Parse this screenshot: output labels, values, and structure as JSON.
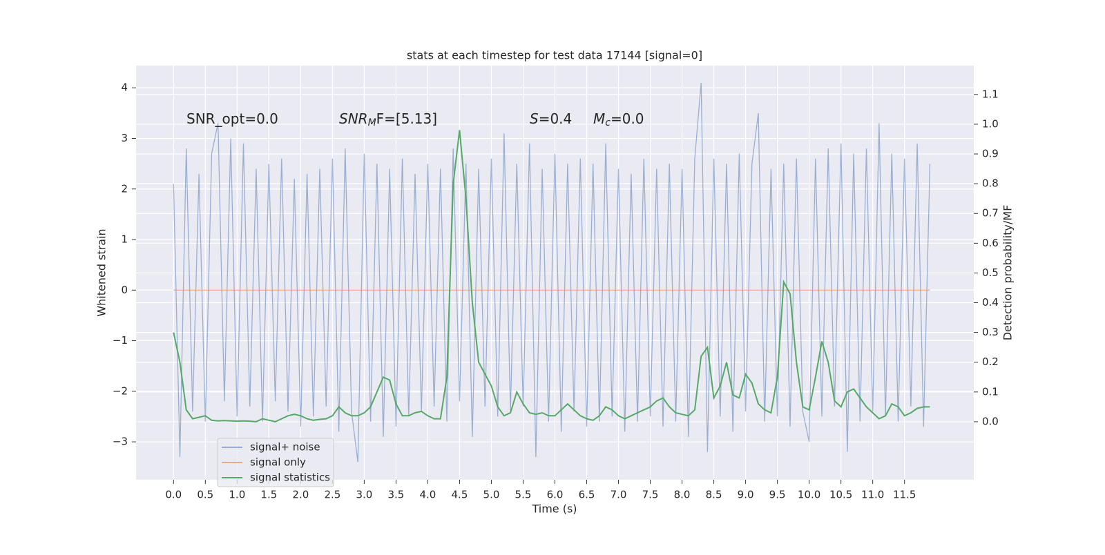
{
  "chart_data": {
    "type": "line",
    "title": "stats at each timestep for test data 17144 [signal=0]",
    "x_label": "Time (s)",
    "y_label": "Whitened strain",
    "y2_label": "Detection probability/MF",
    "annotations": [
      {
        "text": "SNR_opt=0.0"
      },
      {
        "text": "SNR",
        "sub": "M",
        "tail": "F=[5.13]",
        "italic": true
      },
      {
        "text": "S",
        "tail": "=0.4",
        "italic": true
      },
      {
        "text": "M",
        "sub": "c",
        "tail": "=0.0",
        "italic": true
      }
    ],
    "x": [
      0.0,
      0.1,
      0.2,
      0.3,
      0.4,
      0.5,
      0.6,
      0.7,
      0.8,
      0.9,
      1.0,
      1.1,
      1.2,
      1.3,
      1.4,
      1.5,
      1.6,
      1.7,
      1.8,
      1.9,
      2.0,
      2.1,
      2.2,
      2.3,
      2.4,
      2.5,
      2.6,
      2.7,
      2.8,
      2.9,
      3.0,
      3.1,
      3.2,
      3.3,
      3.4,
      3.5,
      3.6,
      3.7,
      3.8,
      3.9,
      4.0,
      4.1,
      4.2,
      4.3,
      4.4,
      4.5,
      4.6,
      4.7,
      4.8,
      4.9,
      5.0,
      5.1,
      5.2,
      5.3,
      5.4,
      5.5,
      5.6,
      5.7,
      5.8,
      5.9,
      6.0,
      6.1,
      6.2,
      6.3,
      6.4,
      6.5,
      6.6,
      6.7,
      6.8,
      6.9,
      7.0,
      7.1,
      7.2,
      7.3,
      7.4,
      7.5,
      7.6,
      7.7,
      7.8,
      7.9,
      8.0,
      8.1,
      8.2,
      8.3,
      8.4,
      8.5,
      8.6,
      8.7,
      8.8,
      8.9,
      9.0,
      9.1,
      9.2,
      9.3,
      9.4,
      9.5,
      9.6,
      9.7,
      9.8,
      9.9,
      10.0,
      10.1,
      10.2,
      10.3,
      10.4,
      10.5,
      10.6,
      10.7,
      10.8,
      10.9,
      11.0,
      11.1,
      11.2,
      11.3,
      11.4,
      11.5,
      11.6,
      11.7,
      11.8,
      11.9
    ],
    "series": [
      {
        "name": "signal+ noise",
        "color": "#4c72b0",
        "axis": "y",
        "values": [
          2.1,
          -3.3,
          2.8,
          -2.4,
          2.3,
          -2.6,
          2.7,
          3.3,
          -2.2,
          3.0,
          -2.5,
          2.9,
          -2.3,
          2.4,
          -2.6,
          2.5,
          -2.2,
          2.6,
          -2.4,
          2.2,
          -2.7,
          2.3,
          -2.5,
          2.4,
          -2.3,
          2.6,
          -2.8,
          2.8,
          -2.4,
          -3.4,
          2.7,
          -2.6,
          2.5,
          -2.9,
          2.4,
          -2.7,
          2.6,
          -2.5,
          2.3,
          -2.4,
          2.5,
          -2.3,
          2.4,
          -2.6,
          2.8,
          -2.2,
          2.5,
          -2.9,
          2.4,
          -2.3,
          2.6,
          -2.5,
          3.1,
          -2.4,
          2.5,
          -2.3,
          2.9,
          -3.3,
          2.4,
          -2.6,
          2.7,
          -2.8,
          2.5,
          -2.4,
          2.6,
          -2.7,
          2.5,
          -2.6,
          2.9,
          -2.5,
          2.4,
          -2.8,
          2.3,
          -2.6,
          2.6,
          -2.5,
          2.4,
          -2.7,
          2.5,
          -2.6,
          2.4,
          -2.9,
          2.6,
          4.1,
          -3.2,
          2.6,
          -2.5,
          2.5,
          -2.8,
          2.7,
          -2.4,
          2.5,
          3.5,
          -2.6,
          2.4,
          -2.5,
          2.5,
          -2.7,
          2.6,
          -2.4,
          -3.0,
          2.6,
          -2.5,
          2.8,
          -2.3,
          2.9,
          -3.2,
          2.7,
          -2.6,
          2.8,
          -2.4,
          3.3,
          -2.5,
          2.7,
          -2.6,
          2.6,
          -2.3,
          2.9,
          -2.7,
          2.5
        ]
      },
      {
        "name": "signal only",
        "color": "#dd8452",
        "axis": "y",
        "values": [
          0,
          0,
          0,
          0,
          0,
          0,
          0,
          0,
          0,
          0,
          0,
          0,
          0,
          0,
          0,
          0,
          0,
          0,
          0,
          0,
          0,
          0,
          0,
          0,
          0,
          0,
          0,
          0,
          0,
          0,
          0,
          0,
          0,
          0,
          0,
          0,
          0,
          0,
          0,
          0,
          0,
          0,
          0,
          0,
          0,
          0,
          0,
          0,
          0,
          0,
          0,
          0,
          0,
          0,
          0,
          0,
          0,
          0,
          0,
          0,
          0,
          0,
          0,
          0,
          0,
          0,
          0,
          0,
          0,
          0,
          0,
          0,
          0,
          0,
          0,
          0,
          0,
          0,
          0,
          0,
          0,
          0,
          0,
          0,
          0,
          0,
          0,
          0,
          0,
          0,
          0,
          0,
          0,
          0,
          0,
          0,
          0,
          0,
          0,
          0,
          0,
          0,
          0,
          0,
          0,
          0,
          0,
          0,
          0,
          0,
          0,
          0,
          0,
          0,
          0,
          0,
          0,
          0,
          0,
          0
        ]
      },
      {
        "name": "signal statistics",
        "color": "#55a868",
        "axis": "y2",
        "values": [
          0.3,
          0.2,
          0.04,
          0.01,
          0.015,
          0.02,
          0.005,
          0.003,
          0.004,
          0.003,
          0.002,
          0.003,
          0.002,
          0.0,
          0.01,
          0.005,
          0.0,
          0.01,
          0.02,
          0.025,
          0.02,
          0.01,
          0.005,
          0.008,
          0.01,
          0.02,
          0.05,
          0.03,
          0.02,
          0.02,
          0.03,
          0.05,
          0.1,
          0.15,
          0.14,
          0.06,
          0.02,
          0.02,
          0.03,
          0.035,
          0.02,
          0.01,
          0.01,
          0.15,
          0.8,
          0.98,
          0.75,
          0.4,
          0.2,
          0.16,
          0.12,
          0.05,
          0.02,
          0.03,
          0.1,
          0.06,
          0.03,
          0.025,
          0.03,
          0.02,
          0.02,
          0.04,
          0.06,
          0.04,
          0.02,
          0.01,
          0.005,
          0.02,
          0.05,
          0.04,
          0.02,
          0.01,
          0.02,
          0.03,
          0.04,
          0.05,
          0.07,
          0.08,
          0.05,
          0.03,
          0.025,
          0.02,
          0.04,
          0.22,
          0.25,
          0.08,
          0.12,
          0.2,
          0.09,
          0.08,
          0.16,
          0.13,
          0.06,
          0.04,
          0.03,
          0.15,
          0.47,
          0.43,
          0.2,
          0.05,
          0.04,
          0.15,
          0.27,
          0.2,
          0.07,
          0.05,
          0.1,
          0.11,
          0.08,
          0.05,
          0.03,
          0.01,
          0.02,
          0.06,
          0.05,
          0.02,
          0.03,
          0.045,
          0.05,
          0.05
        ]
      }
    ],
    "xlim": [
      -0.59,
      12.59
    ],
    "xticks": [
      {
        "value": 0,
        "label": "0.0"
      },
      0.5,
      {
        "value": 1,
        "label": "1.0"
      },
      1.5,
      {
        "value": 2,
        "label": "2.0"
      },
      2.5,
      {
        "value": 3,
        "label": "3.0"
      },
      3.5,
      {
        "value": 4,
        "label": "4.0"
      },
      4.5,
      {
        "value": 5,
        "label": "5.0"
      },
      5.5,
      {
        "value": 6,
        "label": "6.0"
      },
      6.5,
      {
        "value": 7,
        "label": "7.0"
      },
      7.5,
      {
        "value": 8,
        "label": "8.0"
      },
      8.5,
      {
        "value": 9,
        "label": "9.0"
      },
      9.5,
      {
        "value": 10,
        "label": "10.0"
      },
      10.5,
      {
        "value": 11,
        "label": "11.0"
      },
      11.5
    ],
    "ylim": [
      -3.75,
      4.44
    ],
    "yticks": [
      {
        "value": -3,
        "label": "−3"
      },
      {
        "value": -2,
        "label": "−2"
      },
      {
        "value": -1,
        "label": "−1"
      },
      0,
      1,
      2,
      3,
      4
    ],
    "y2lim": [
      -0.195,
      1.197
    ],
    "y2ticks": [
      {
        "value": 0,
        "label": "0.0"
      },
      0.1,
      0.2,
      0.3,
      0.4,
      0.5,
      0.6,
      0.7,
      0.8,
      0.9,
      {
        "value": 1,
        "label": "1.0"
      },
      1.1
    ],
    "grid": true,
    "legend": "lower left"
  }
}
